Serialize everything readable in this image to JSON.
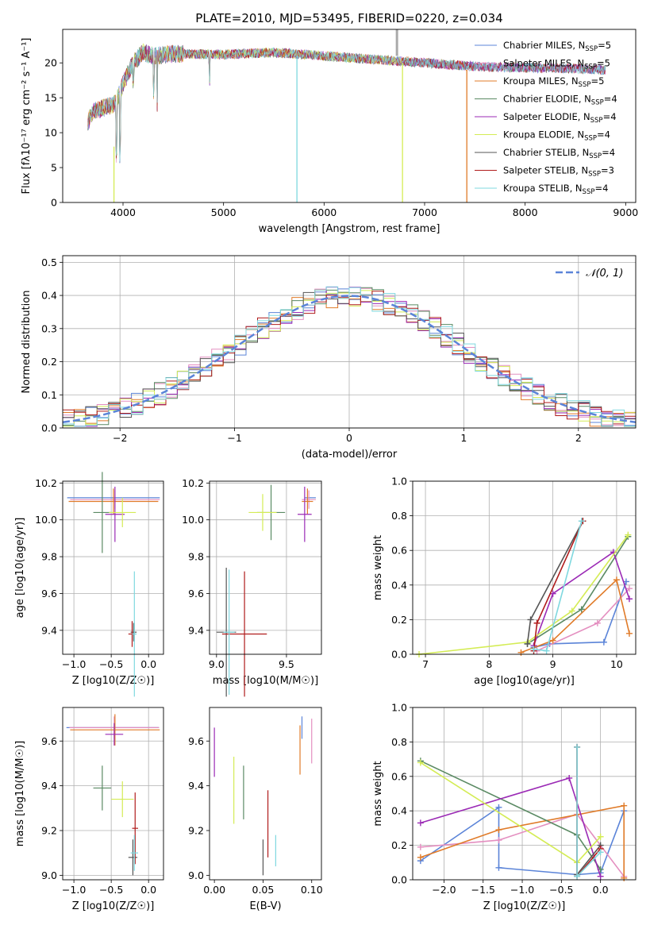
{
  "figure": {
    "title": "PLATE=2010, MJD=53495, FIBERID=0220, z=0.034"
  },
  "colors": {
    "chabrier_miles": "#5b84d8",
    "salpeter_miles": "#e48fc0",
    "kroupa_miles": "#e07b29",
    "chabrier_elodie": "#5a8a63",
    "salpeter_elodie": "#9b2ab5",
    "kroupa_elodie": "#d4ec55",
    "chabrier_stelib": "#555555",
    "salpeter_stelib": "#b01c1c",
    "kroupa_stelib": "#7fd8df"
  },
  "chart_data": [
    {
      "id": "spectrum",
      "type": "line",
      "title": "PLATE=2010, MJD=53495, FIBERID=0220, z=0.034",
      "xlabel": "wavelength [Angstrom, rest frame]",
      "ylabel": "Flux [fλ10⁻¹⁷ erg cm⁻² s⁻¹ A⁻¹]",
      "xlim": [
        3400,
        9100
      ],
      "ylim": [
        0,
        24.8
      ],
      "xticks": [
        4000,
        5000,
        6000,
        7000,
        8000,
        9000
      ],
      "yticks": [
        0,
        5,
        10,
        15,
        20
      ],
      "grid": false,
      "legend_position": "top-right",
      "legend": [
        {
          "label": "Chabrier MILES, N",
          "sub": "SSP",
          "suffix": "=5",
          "color": "#5b84d8"
        },
        {
          "label": "Salpeter MILES, N",
          "sub": "SSP",
          "suffix": "=5",
          "color": "#e48fc0"
        },
        {
          "label": "Kroupa MILES, N",
          "sub": "SSP",
          "suffix": "=5",
          "color": "#e07b29"
        },
        {
          "label": "Chabrier ELODIE, N",
          "sub": "SSP",
          "suffix": "=4",
          "color": "#5a8a63"
        },
        {
          "label": "Salpeter ELODIE, N",
          "sub": "SSP",
          "suffix": "=4",
          "color": "#9b2ab5"
        },
        {
          "label": "Kroupa ELODIE, N",
          "sub": "SSP",
          "suffix": "=4",
          "color": "#d4ec55"
        },
        {
          "label": "Chabrier STELIB, N",
          "sub": "SSP",
          "suffix": "=4",
          "color": "#555555"
        },
        {
          "label": "Salpeter STELIB, N",
          "sub": "SSP",
          "suffix": "=3",
          "color": "#b01c1c"
        },
        {
          "label": "Kroupa STELIB, N",
          "sub": "SSP",
          "suffix": "=4",
          "color": "#7fd8df"
        }
      ],
      "continuum_nodes": {
        "x": [
          3650,
          3700,
          3800,
          3900,
          3950,
          4000,
          4100,
          4200,
          4300,
          4500,
          5000,
          5500,
          6000,
          6500,
          7000,
          7500,
          8000,
          8500,
          8800
        ],
        "y": [
          11.5,
          13,
          13.5,
          14,
          15,
          17,
          20,
          21.5,
          21,
          21.3,
          21.2,
          21.5,
          21,
          20.5,
          20,
          19.5,
          19.3,
          19.2,
          19
        ]
      },
      "dips": [
        {
          "x": 3934,
          "y": 4.5
        },
        {
          "x": 3969,
          "y": 5
        },
        {
          "x": 4102,
          "y": 15
        },
        {
          "x": 4305,
          "y": 14
        },
        {
          "x": 4340,
          "y": 13
        },
        {
          "x": 4861,
          "y": 16
        }
      ],
      "vertical_drops": [
        {
          "x": 3910,
          "y_from": 8,
          "y_to": 0,
          "color": "#d4ec55"
        },
        {
          "x": 5730,
          "y_from": 21,
          "y_to": 0,
          "color": "#7fd8df"
        },
        {
          "x": 6780,
          "y_from": 20,
          "y_to": 0,
          "color": "#d4ec55"
        },
        {
          "x": 7420,
          "y_from": 19,
          "y_to": 0,
          "color": "#e07b29"
        }
      ],
      "spike": {
        "x": 6725,
        "y_from": 21,
        "y_to": 24.8,
        "color": "#aaaaaa"
      }
    },
    {
      "id": "residual_hist",
      "type": "line",
      "xlabel": "(data-model)/error",
      "ylabel": "Normed distribution",
      "xlim": [
        -2.5,
        2.5
      ],
      "ylim": [
        0,
        0.52
      ],
      "xticks": [
        -2,
        -1,
        0,
        1,
        2
      ],
      "xtick_labels": [
        "−2",
        "−1",
        "0",
        "1",
        "2"
      ],
      "yticks": [
        0.0,
        0.1,
        0.2,
        0.3,
        0.4,
        0.5
      ],
      "ytick_labels": [
        "0.0",
        "0.1",
        "0.2",
        "0.3",
        "0.4",
        "0.5"
      ],
      "grid": true,
      "legend_position": "top-right",
      "legend_label": "𝒩(0, 1)",
      "legend_color": "#5b84d8",
      "bin_width": 0.1
    },
    {
      "id": "age_vs_Z",
      "type": "scatter",
      "xlabel": "Z [log10(Z/Z☉)]",
      "ylabel": "age  [log10(age/yr)]",
      "xlim": [
        -1.15,
        0.2
      ],
      "ylim": [
        9.27,
        10.21
      ],
      "xticks": [
        -1.0,
        -0.5,
        0.0
      ],
      "xtick_labels": [
        "−1.0",
        "−0.5",
        "0.0"
      ],
      "yticks": [
        9.4,
        9.6,
        9.8,
        10.0,
        10.2
      ],
      "ytick_labels": [
        "9.4",
        "9.6",
        "9.8",
        "10.0",
        "10.2"
      ],
      "grid": true,
      "points": [
        {
          "x": -0.47,
          "y": 10.12,
          "xerr": 0.62,
          "yerr": 0.0,
          "color": "#5b84d8"
        },
        {
          "x": -0.45,
          "y": 10.11,
          "xerr": 0.6,
          "yerr": 0.05,
          "color": "#e48fc0"
        },
        {
          "x": -0.47,
          "y": 10.1,
          "xerr": 0.6,
          "yerr": 0.07,
          "color": "#e07b29"
        },
        {
          "x": -0.62,
          "y": 10.04,
          "xerr": 0.12,
          "yerr": 0.22,
          "color": "#5a8a63"
        },
        {
          "x": -0.45,
          "y": 10.03,
          "xerr": 0.13,
          "yerr": 0.15,
          "color": "#9b2ab5"
        },
        {
          "x": -0.35,
          "y": 10.04,
          "xerr": 0.18,
          "yerr": 0.08,
          "color": "#d4ec55"
        },
        {
          "x": -0.2,
          "y": 9.39,
          "xerr": 0.04,
          "yerr": 0.05,
          "color": "#555555"
        },
        {
          "x": -0.22,
          "y": 9.38,
          "xerr": 0.05,
          "yerr": 0.07,
          "color": "#b01c1c"
        },
        {
          "x": -0.19,
          "y": 9.38,
          "xerr": 0.03,
          "yerr": 0.34,
          "color": "#7fd8df"
        }
      ]
    },
    {
      "id": "age_vs_mass",
      "type": "scatter",
      "xlabel": "mass [log10(M/M☉)]",
      "ylabel": "",
      "xlim": [
        8.95,
        9.75
      ],
      "ylim": [
        9.27,
        10.21
      ],
      "xticks": [
        9.0,
        9.5
      ],
      "xtick_labels": [
        "9.0",
        "9.5"
      ],
      "yticks": [
        9.4,
        9.6,
        9.8,
        10.0,
        10.2
      ],
      "ytick_labels": [
        "9.4",
        "9.6",
        "9.8",
        "10.0",
        "10.2"
      ],
      "grid": true,
      "points": [
        {
          "x": 9.67,
          "y": 10.12,
          "xerr": 0.04,
          "yerr": 0.0,
          "color": "#5b84d8"
        },
        {
          "x": 9.66,
          "y": 10.11,
          "xerr": 0.05,
          "yerr": 0.05,
          "color": "#e48fc0"
        },
        {
          "x": 9.65,
          "y": 10.1,
          "xerr": 0.04,
          "yerr": 0.07,
          "color": "#e07b29"
        },
        {
          "x": 9.39,
          "y": 10.04,
          "xerr": 0.1,
          "yerr": 0.15,
          "color": "#5a8a63"
        },
        {
          "x": 9.63,
          "y": 10.03,
          "xerr": 0.05,
          "yerr": 0.15,
          "color": "#9b2ab5"
        },
        {
          "x": 9.33,
          "y": 10.04,
          "xerr": 0.1,
          "yerr": 0.1,
          "color": "#d4ec55"
        },
        {
          "x": 9.07,
          "y": 9.39,
          "xerr": 0.07,
          "yerr": 0.35,
          "color": "#555555"
        },
        {
          "x": 9.2,
          "y": 9.38,
          "xerr": 0.16,
          "yerr": 0.34,
          "color": "#b01c1c"
        },
        {
          "x": 9.09,
          "y": 9.39,
          "xerr": 0.04,
          "yerr": 0.34,
          "color": "#7fd8df"
        }
      ]
    },
    {
      "id": "mass_weight_vs_age",
      "type": "line",
      "xlabel": "age  [log10(age/yr)]",
      "ylabel": "mass weight",
      "xlim": [
        6.8,
        10.3
      ],
      "ylim": [
        0,
        1.0
      ],
      "xticks": [
        7,
        8,
        9,
        10
      ],
      "xtick_labels": [
        "7",
        "8",
        "9",
        "10"
      ],
      "yticks": [
        0.0,
        0.2,
        0.4,
        0.6,
        0.8,
        1.0
      ],
      "ytick_labels": [
        "0.0",
        "0.2",
        "0.4",
        "0.6",
        "0.8",
        "1.0"
      ],
      "grid": true,
      "series": [
        {
          "color": "#5b84d8",
          "x": [
            8.7,
            8.95,
            9.8,
            10.15
          ],
          "y": [
            0.04,
            0.06,
            0.07,
            0.42
          ]
        },
        {
          "color": "#e48fc0",
          "x": [
            8.75,
            9.7,
            10.2
          ],
          "y": [
            0.02,
            0.18,
            0.38
          ]
        },
        {
          "color": "#e07b29",
          "x": [
            8.5,
            9.0,
            10.0,
            10.2
          ],
          "y": [
            0.01,
            0.08,
            0.43,
            0.12
          ]
        },
        {
          "color": "#5a8a63",
          "x": [
            8.6,
            9.45,
            10.18
          ],
          "y": [
            0.06,
            0.26,
            0.68
          ]
        },
        {
          "color": "#9b2ab5",
          "x": [
            8.7,
            9.0,
            9.95,
            10.2
          ],
          "y": [
            0.05,
            0.35,
            0.59,
            0.32
          ]
        },
        {
          "color": "#d4ec55",
          "x": [
            6.9,
            8.6,
            9.3,
            10.18
          ],
          "y": [
            0.0,
            0.07,
            0.25,
            0.69
          ]
        },
        {
          "color": "#555555",
          "x": [
            8.6,
            8.65,
            9.47
          ],
          "y": [
            0.06,
            0.2,
            0.77
          ]
        },
        {
          "color": "#b01c1c",
          "x": [
            8.7,
            8.75,
            9.47
          ],
          "y": [
            0.02,
            0.18,
            0.77
          ]
        },
        {
          "color": "#7fd8df",
          "x": [
            8.7,
            8.9,
            9.45
          ],
          "y": [
            0.03,
            0.02,
            0.77
          ]
        }
      ]
    },
    {
      "id": "mass_vs_Z",
      "type": "scatter",
      "xlabel": "Z [log10(Z/Z☉)]",
      "ylabel": "mass [log10(M/M☉)]",
      "xlim": [
        -1.15,
        0.2
      ],
      "ylim": [
        8.98,
        9.75
      ],
      "xticks": [
        -1.0,
        -0.5,
        0.0
      ],
      "xtick_labels": [
        "−1.0",
        "−0.5",
        "0.0"
      ],
      "yticks": [
        9.0,
        9.2,
        9.4,
        9.6
      ],
      "ytick_labels": [
        "9.0",
        "9.2",
        "9.4",
        "9.6"
      ],
      "grid": true,
      "points": [
        {
          "x": -0.48,
          "y": 9.66,
          "xerr": 0.62,
          "yerr": 0.0,
          "color": "#5b84d8"
        },
        {
          "x": -0.46,
          "y": 9.66,
          "xerr": 0.6,
          "yerr": 0.05,
          "color": "#e48fc0"
        },
        {
          "x": -0.45,
          "y": 9.65,
          "xerr": 0.6,
          "yerr": 0.07,
          "color": "#e07b29"
        },
        {
          "x": -0.62,
          "y": 9.39,
          "xerr": 0.12,
          "yerr": 0.1,
          "color": "#5a8a63"
        },
        {
          "x": -0.46,
          "y": 9.63,
          "xerr": 0.12,
          "yerr": 0.05,
          "color": "#9b2ab5"
        },
        {
          "x": -0.35,
          "y": 9.34,
          "xerr": 0.15,
          "yerr": 0.08,
          "color": "#d4ec55"
        },
        {
          "x": -0.21,
          "y": 9.08,
          "xerr": 0.06,
          "yerr": 0.08,
          "color": "#555555"
        },
        {
          "x": -0.18,
          "y": 9.21,
          "xerr": 0.04,
          "yerr": 0.16,
          "color": "#b01c1c"
        },
        {
          "x": -0.19,
          "y": 9.1,
          "xerr": 0.05,
          "yerr": 0.08,
          "color": "#7fd8df"
        }
      ]
    },
    {
      "id": "mass_vs_ebv",
      "type": "scatter",
      "xlabel": "E(B-V)",
      "ylabel": "",
      "xlim": [
        -0.005,
        0.11
      ],
      "ylim": [
        8.98,
        9.75
      ],
      "xticks": [
        0.0,
        0.05,
        0.1
      ],
      "xtick_labels": [
        "0.00",
        "0.05",
        "0.10"
      ],
      "yticks": [
        9.0,
        9.2,
        9.4,
        9.6
      ],
      "ytick_labels": [
        "9.0",
        "9.2",
        "9.4",
        "9.6"
      ],
      "grid": false,
      "points": [
        {
          "x": 0.09,
          "y": 9.66,
          "yerr": 0.05,
          "color": "#5b84d8"
        },
        {
          "x": 0.1,
          "y": 9.6,
          "yerr": 0.1,
          "color": "#e48fc0"
        },
        {
          "x": 0.088,
          "y": 9.56,
          "yerr": 0.11,
          "color": "#e07b29"
        },
        {
          "x": 0.03,
          "y": 9.37,
          "yerr": 0.12,
          "color": "#5a8a63"
        },
        {
          "x": 0.0,
          "y": 9.55,
          "yerr": 0.11,
          "color": "#9b2ab5"
        },
        {
          "x": 0.02,
          "y": 9.38,
          "yerr": 0.15,
          "color": "#d4ec55"
        },
        {
          "x": 0.05,
          "y": 9.08,
          "yerr": 0.08,
          "color": "#555555"
        },
        {
          "x": 0.055,
          "y": 9.23,
          "yerr": 0.15,
          "color": "#b01c1c"
        },
        {
          "x": 0.063,
          "y": 9.11,
          "yerr": 0.07,
          "color": "#7fd8df"
        }
      ]
    },
    {
      "id": "mass_weight_vs_Z",
      "type": "line",
      "xlabel": "Z [log10(Z/Z☉)]",
      "ylabel": "mass weight",
      "xlim": [
        -2.4,
        0.45
      ],
      "ylim": [
        0,
        1.0
      ],
      "xticks": [
        -2.0,
        -1.5,
        -1.0,
        -0.5,
        0.0
      ],
      "xtick_labels": [
        "−2.0",
        "−1.5",
        "−1.0",
        "−0.5",
        "0.0"
      ],
      "yticks": [
        0.0,
        0.2,
        0.4,
        0.6,
        0.8,
        1.0
      ],
      "ytick_labels": [
        "0.0",
        "0.2",
        "0.4",
        "0.6",
        "0.8",
        "1.0"
      ],
      "grid": true,
      "series": [
        {
          "color": "#5b84d8",
          "x": [
            -2.3,
            -1.3,
            -1.3,
            -0.3,
            0.0,
            0.3
          ],
          "y": [
            0.11,
            0.42,
            0.07,
            0.03,
            0.04,
            0.4
          ]
        },
        {
          "color": "#e48fc0",
          "x": [
            -2.3,
            -1.3,
            -0.3,
            0.3
          ],
          "y": [
            0.19,
            0.23,
            0.38,
            0.02
          ]
        },
        {
          "color": "#e07b29",
          "x": [
            -2.3,
            -1.3,
            0.3,
            0.3
          ],
          "y": [
            0.13,
            0.29,
            0.43,
            0.01
          ]
        },
        {
          "color": "#5a8a63",
          "x": [
            -2.3,
            -0.3,
            0.0
          ],
          "y": [
            0.69,
            0.26,
            0.06
          ]
        },
        {
          "color": "#9b2ab5",
          "x": [
            -2.3,
            -0.4,
            0.0
          ],
          "y": [
            0.33,
            0.59,
            0.02
          ]
        },
        {
          "color": "#d4ec55",
          "x": [
            -2.3,
            -0.3,
            0.0
          ],
          "y": [
            0.68,
            0.1,
            0.25
          ]
        },
        {
          "color": "#555555",
          "x": [
            -0.3,
            -0.3,
            0.0
          ],
          "y": [
            0.77,
            0.03,
            0.2
          ]
        },
        {
          "color": "#b01c1c",
          "x": [
            -0.3,
            -0.3,
            0.0
          ],
          "y": [
            0.77,
            0.02,
            0.18
          ]
        },
        {
          "color": "#7fd8df",
          "x": [
            -0.3,
            -0.3,
            0.0
          ],
          "y": [
            0.77,
            0.02,
            0.16
          ]
        }
      ]
    }
  ]
}
